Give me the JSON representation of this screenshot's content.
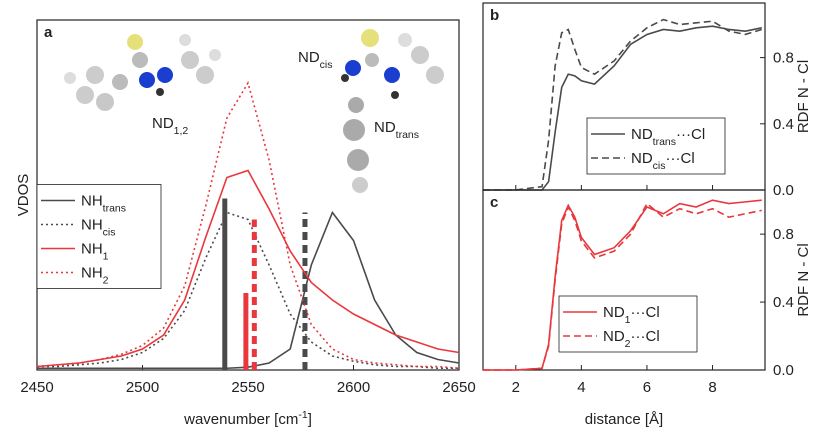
{
  "chart_data": [
    {
      "type": "line",
      "panel": "a",
      "xlabel": "wavenumber [cm",
      "xlabel_sup": "-1",
      "xlabel_end": "]",
      "ylabel": "VDOS",
      "x": [
        2450,
        2460,
        2470,
        2480,
        2490,
        2500,
        2510,
        2520,
        2530,
        2540,
        2550,
        2560,
        2570,
        2580,
        2590,
        2600,
        2610,
        2620,
        2630,
        2640,
        2650
      ],
      "xlim": [
        2450,
        2650
      ],
      "xticks": [
        2450,
        2500,
        2550,
        2600,
        2650
      ],
      "ylim": [
        0,
        1
      ],
      "legend": "center left",
      "annotations": [
        {
          "text": "ND",
          "sub": "1,2",
          "color": "#e8383d"
        },
        {
          "text": "ND",
          "sub": "cis",
          "color": "#222222"
        },
        {
          "text": "ND",
          "sub": "trans",
          "color": "#222222"
        }
      ],
      "series": [
        {
          "name": "NH",
          "name_sub": "trans",
          "color": "#4a4a4a",
          "style": "solid",
          "stick_x": 2539,
          "stick_value": 0.49,
          "values": [
            0.005,
            0.005,
            0.005,
            0.005,
            0.005,
            0.005,
            0.005,
            0.005,
            0.005,
            0.005,
            0.008,
            0.02,
            0.06,
            0.3,
            0.45,
            0.37,
            0.2,
            0.1,
            0.05,
            0.03,
            0.02
          ]
        },
        {
          "name": "NH",
          "name_sub": "cis",
          "color": "#4a4a4a",
          "style": "dotted",
          "stick_x": 2577,
          "stick_value": 0.45,
          "values": [
            0.01,
            0.01,
            0.015,
            0.02,
            0.03,
            0.05,
            0.09,
            0.17,
            0.32,
            0.45,
            0.43,
            0.3,
            0.16,
            0.08,
            0.04,
            0.025,
            0.015,
            0.01,
            0.01,
            0.005,
            0.005
          ]
        },
        {
          "name": "NH",
          "name_sub": "1",
          "color": "#e8383d",
          "style": "solid",
          "stick_x": 2549,
          "stick_value": 0.22,
          "values": [
            0.01,
            0.015,
            0.02,
            0.03,
            0.04,
            0.06,
            0.1,
            0.2,
            0.38,
            0.55,
            0.57,
            0.46,
            0.34,
            0.25,
            0.2,
            0.16,
            0.13,
            0.1,
            0.08,
            0.06,
            0.05
          ]
        },
        {
          "name": "NH",
          "name_sub": "2",
          "color": "#e8383d",
          "style": "dotted",
          "stick_x": 2553,
          "stick_value": 0.43,
          "values": [
            0.01,
            0.015,
            0.02,
            0.03,
            0.045,
            0.07,
            0.12,
            0.24,
            0.47,
            0.72,
            0.82,
            0.6,
            0.3,
            0.13,
            0.06,
            0.03,
            0.02,
            0.015,
            0.01,
            0.01,
            0.005
          ]
        }
      ]
    },
    {
      "type": "line",
      "panel": "b",
      "ylabel": "RDF N - Cl",
      "x": [
        1,
        2,
        2.8,
        3.0,
        3.2,
        3.4,
        3.6,
        3.8,
        4.0,
        4.4,
        5.0,
        5.5,
        6.0,
        6.5,
        7.0,
        7.5,
        8.0,
        8.5,
        9.0,
        9.5
      ],
      "xlim": [
        1,
        9.6
      ],
      "ylim": [
        0,
        1.13
      ],
      "yticks": [
        {
          "value": 0,
          "label": "0.0"
        },
        {
          "value": 0.4,
          "label": "0.4"
        },
        {
          "value": 0.8,
          "label": "0.8"
        }
      ],
      "legend": "lower right",
      "series": [
        {
          "name": "ND",
          "name_sub": "trans",
          "name_end": "···Cl",
          "color": "#4a4a4a",
          "style": "solid",
          "values": [
            0,
            0,
            0,
            0.05,
            0.35,
            0.62,
            0.7,
            0.69,
            0.66,
            0.64,
            0.75,
            0.88,
            0.94,
            0.97,
            0.96,
            0.98,
            0.99,
            0.97,
            0.96,
            0.98
          ]
        },
        {
          "name": "ND",
          "name_sub": "cis",
          "name_end": "···Cl",
          "color": "#4a4a4a",
          "style": "dashed",
          "values": [
            0,
            0,
            0.02,
            0.3,
            0.75,
            0.95,
            0.97,
            0.85,
            0.74,
            0.7,
            0.78,
            0.9,
            0.98,
            1.03,
            1.0,
            1.01,
            1.02,
            0.96,
            0.94,
            0.97
          ]
        }
      ]
    },
    {
      "type": "line",
      "panel": "c",
      "xlabel": "distance [Å]",
      "ylabel": "RDF N - Cl",
      "x": [
        1,
        2,
        2.8,
        3.0,
        3.2,
        3.4,
        3.6,
        3.8,
        4.0,
        4.4,
        5.0,
        5.5,
        6.0,
        6.5,
        7.0,
        7.5,
        8.0,
        8.5,
        9.0,
        9.5
      ],
      "xlim": [
        1,
        9.6
      ],
      "xticks": [
        2,
        4,
        6,
        8
      ],
      "ylim": [
        0,
        1.06
      ],
      "yticks": [
        {
          "value": 0,
          "label": "0.0"
        },
        {
          "value": 0.4,
          "label": "0.4"
        },
        {
          "value": 0.8,
          "label": "0.8"
        }
      ],
      "legend": "lower center",
      "series": [
        {
          "name": "ND",
          "name_sub": "1",
          "name_end": "···Cl",
          "color": "#e8383d",
          "style": "solid",
          "values": [
            0,
            0,
            0.01,
            0.15,
            0.55,
            0.88,
            0.97,
            0.9,
            0.78,
            0.68,
            0.72,
            0.82,
            0.96,
            0.92,
            0.98,
            0.96,
            1.0,
            0.98,
            0.99,
            1.0
          ]
        },
        {
          "name": "ND",
          "name_sub": "2",
          "name_end": "···Cl",
          "color": "#e8383d",
          "style": "dashed",
          "values": [
            0,
            0,
            0.01,
            0.14,
            0.53,
            0.86,
            0.96,
            0.88,
            0.76,
            0.66,
            0.7,
            0.8,
            0.98,
            0.9,
            0.95,
            0.92,
            0.95,
            0.9,
            0.92,
            0.94
          ]
        }
      ]
    }
  ]
}
